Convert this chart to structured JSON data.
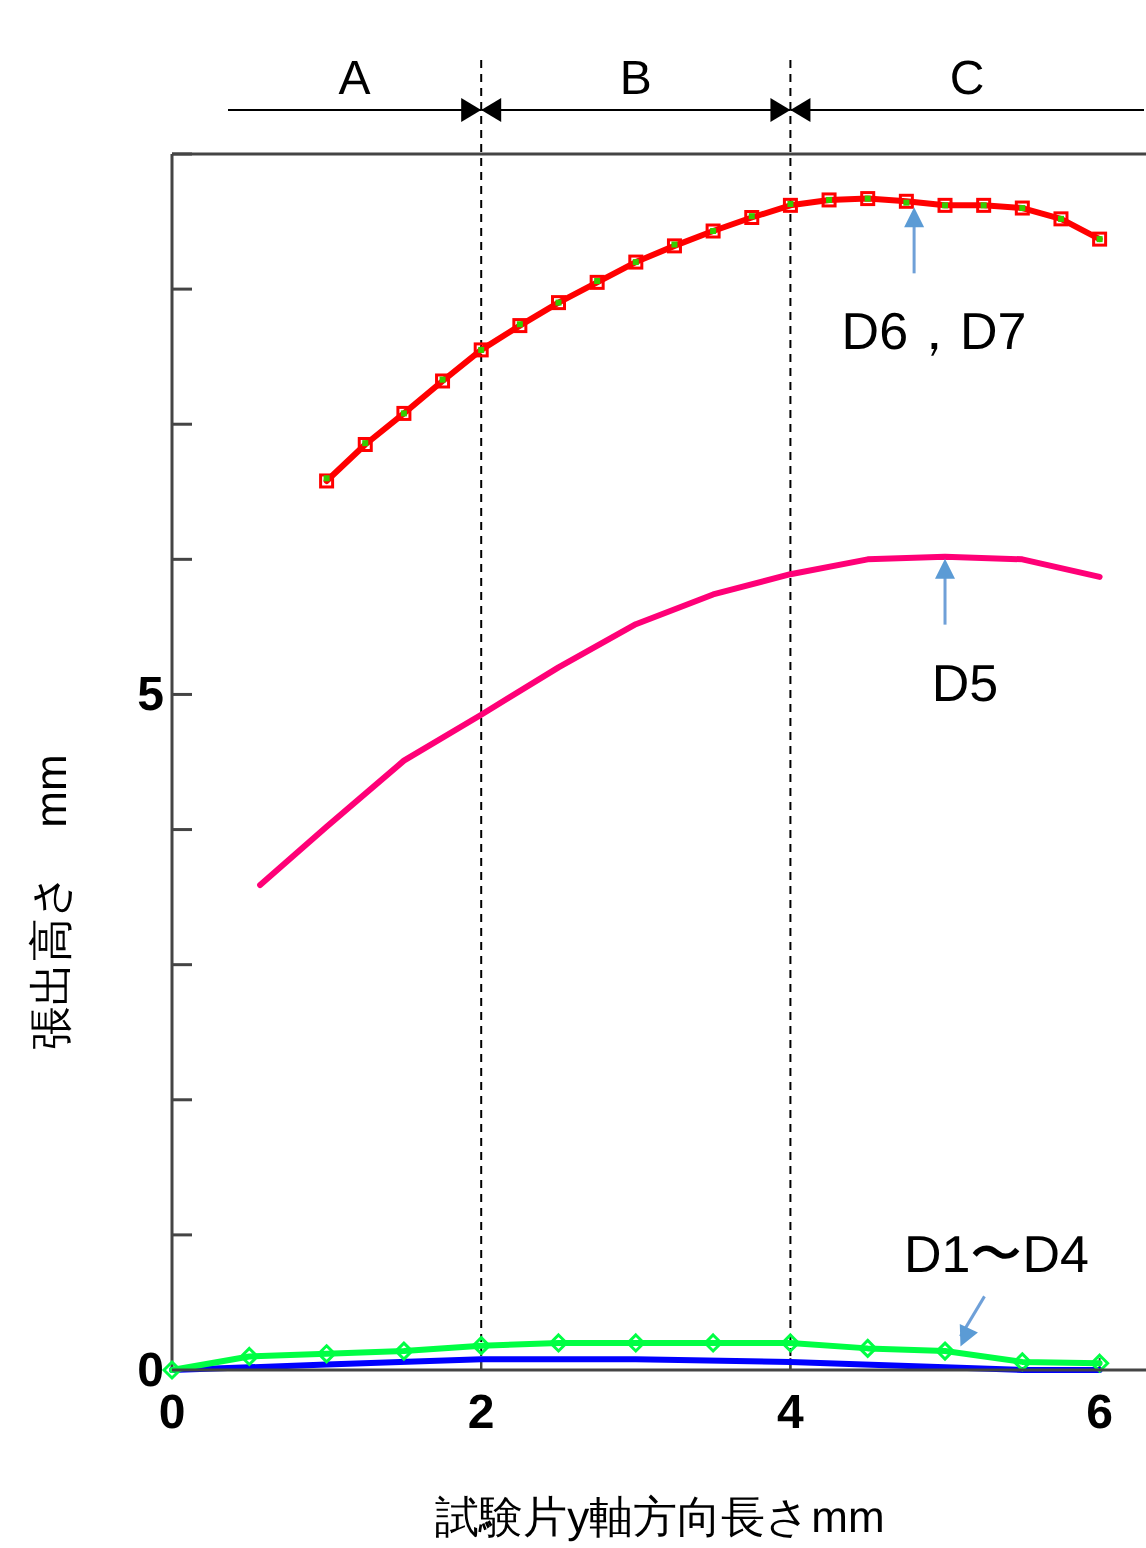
{
  "chart_data": {
    "type": "line",
    "xlabel": "試験片y軸方向長さmm",
    "ylabel": "張出高さ　mm",
    "xlim": [
      0,
      6.3
    ],
    "xticks": [
      0,
      2,
      4,
      6
    ],
    "ylim": [
      0,
      9
    ],
    "yticks": [
      0,
      {
        "value": 1,
        "label": null
      },
      {
        "value": 2,
        "label": null
      },
      {
        "value": 3,
        "label": null
      },
      {
        "value": 4,
        "label": null
      },
      5,
      {
        "value": 6,
        "label": null
      },
      {
        "value": 7,
        "label": null
      },
      {
        "value": 8,
        "label": null
      },
      {
        "value": 9,
        "label": null
      }
    ],
    "grid": false,
    "ref_lines": [
      {
        "axis": "x",
        "value": 2,
        "label": null,
        "color": "#000000",
        "line_style": "dashed"
      },
      {
        "axis": "x",
        "value": 4,
        "label": null,
        "color": "#000000",
        "line_style": "dashed"
      }
    ],
    "series": [
      {
        "color": "#ff0000",
        "marker": "square",
        "x": [
          1.0,
          1.25,
          1.5,
          1.75,
          2.0,
          2.25,
          2.5,
          2.75,
          3.0,
          3.25,
          3.5,
          3.75,
          4.0,
          4.25,
          4.5,
          4.75,
          5.0,
          5.25,
          5.5,
          5.75,
          6.0
        ],
        "values": [
          6.58,
          6.85,
          7.08,
          7.32,
          7.55,
          7.73,
          7.9,
          8.05,
          8.2,
          8.32,
          8.43,
          8.53,
          8.62,
          8.66,
          8.67,
          8.65,
          8.62,
          8.62,
          8.6,
          8.52,
          8.37
        ]
      },
      {
        "type": "scatter",
        "color": "#33cc00",
        "marker": "square",
        "x": [
          1.0,
          1.25,
          1.5,
          1.75,
          2.0,
          2.25,
          2.5,
          2.75,
          3.0,
          3.25,
          3.5,
          3.75,
          4.0,
          4.25,
          4.5,
          4.75,
          5.0,
          5.25,
          5.5,
          5.75,
          6.0
        ],
        "values": [
          6.6,
          6.86,
          7.08,
          7.33,
          7.55,
          7.74,
          7.9,
          8.06,
          8.2,
          8.33,
          8.43,
          8.54,
          8.63,
          8.66,
          8.67,
          8.64,
          8.62,
          8.62,
          8.6,
          8.52,
          8.37
        ]
      },
      {
        "color": "#ff0077",
        "marker": "none",
        "x": [
          0.57,
          1.0,
          1.5,
          2.0,
          2.5,
          3.0,
          3.5,
          4.0,
          4.5,
          5.0,
          5.5,
          6.0
        ],
        "values": [
          3.59,
          4.02,
          4.51,
          4.85,
          5.2,
          5.52,
          5.74,
          5.89,
          6.0,
          6.02,
          6.0,
          5.87
        ]
      },
      {
        "color": "#0000ff",
        "marker": "none",
        "x": [
          0,
          1.0,
          2.0,
          3.0,
          4.0,
          5.0,
          5.5,
          6.0
        ],
        "values": [
          0,
          0.04,
          0.08,
          0.08,
          0.06,
          0.02,
          0,
          0
        ]
      },
      {
        "color": "#00ff44",
        "marker": "diamond",
        "x": [
          0,
          0.5,
          1.0,
          1.5,
          2.0,
          2.5,
          3.0,
          3.5,
          4.0,
          4.5,
          5.0,
          5.5,
          6.0
        ],
        "values": [
          0,
          0.1,
          0.12,
          0.14,
          0.18,
          0.2,
          0.2,
          0.2,
          0.2,
          0.16,
          0.14,
          0.06,
          0.05
        ]
      }
    ],
    "annotations": [
      {
        "text": "D6，D7",
        "x": 4.8,
        "y": 8.62
      },
      {
        "text": "D5",
        "x": 5.0,
        "y": 6.02
      },
      {
        "text": "D1〜D4",
        "x": 5.1,
        "y": 0.16
      },
      "A",
      "B",
      "C"
    ]
  }
}
